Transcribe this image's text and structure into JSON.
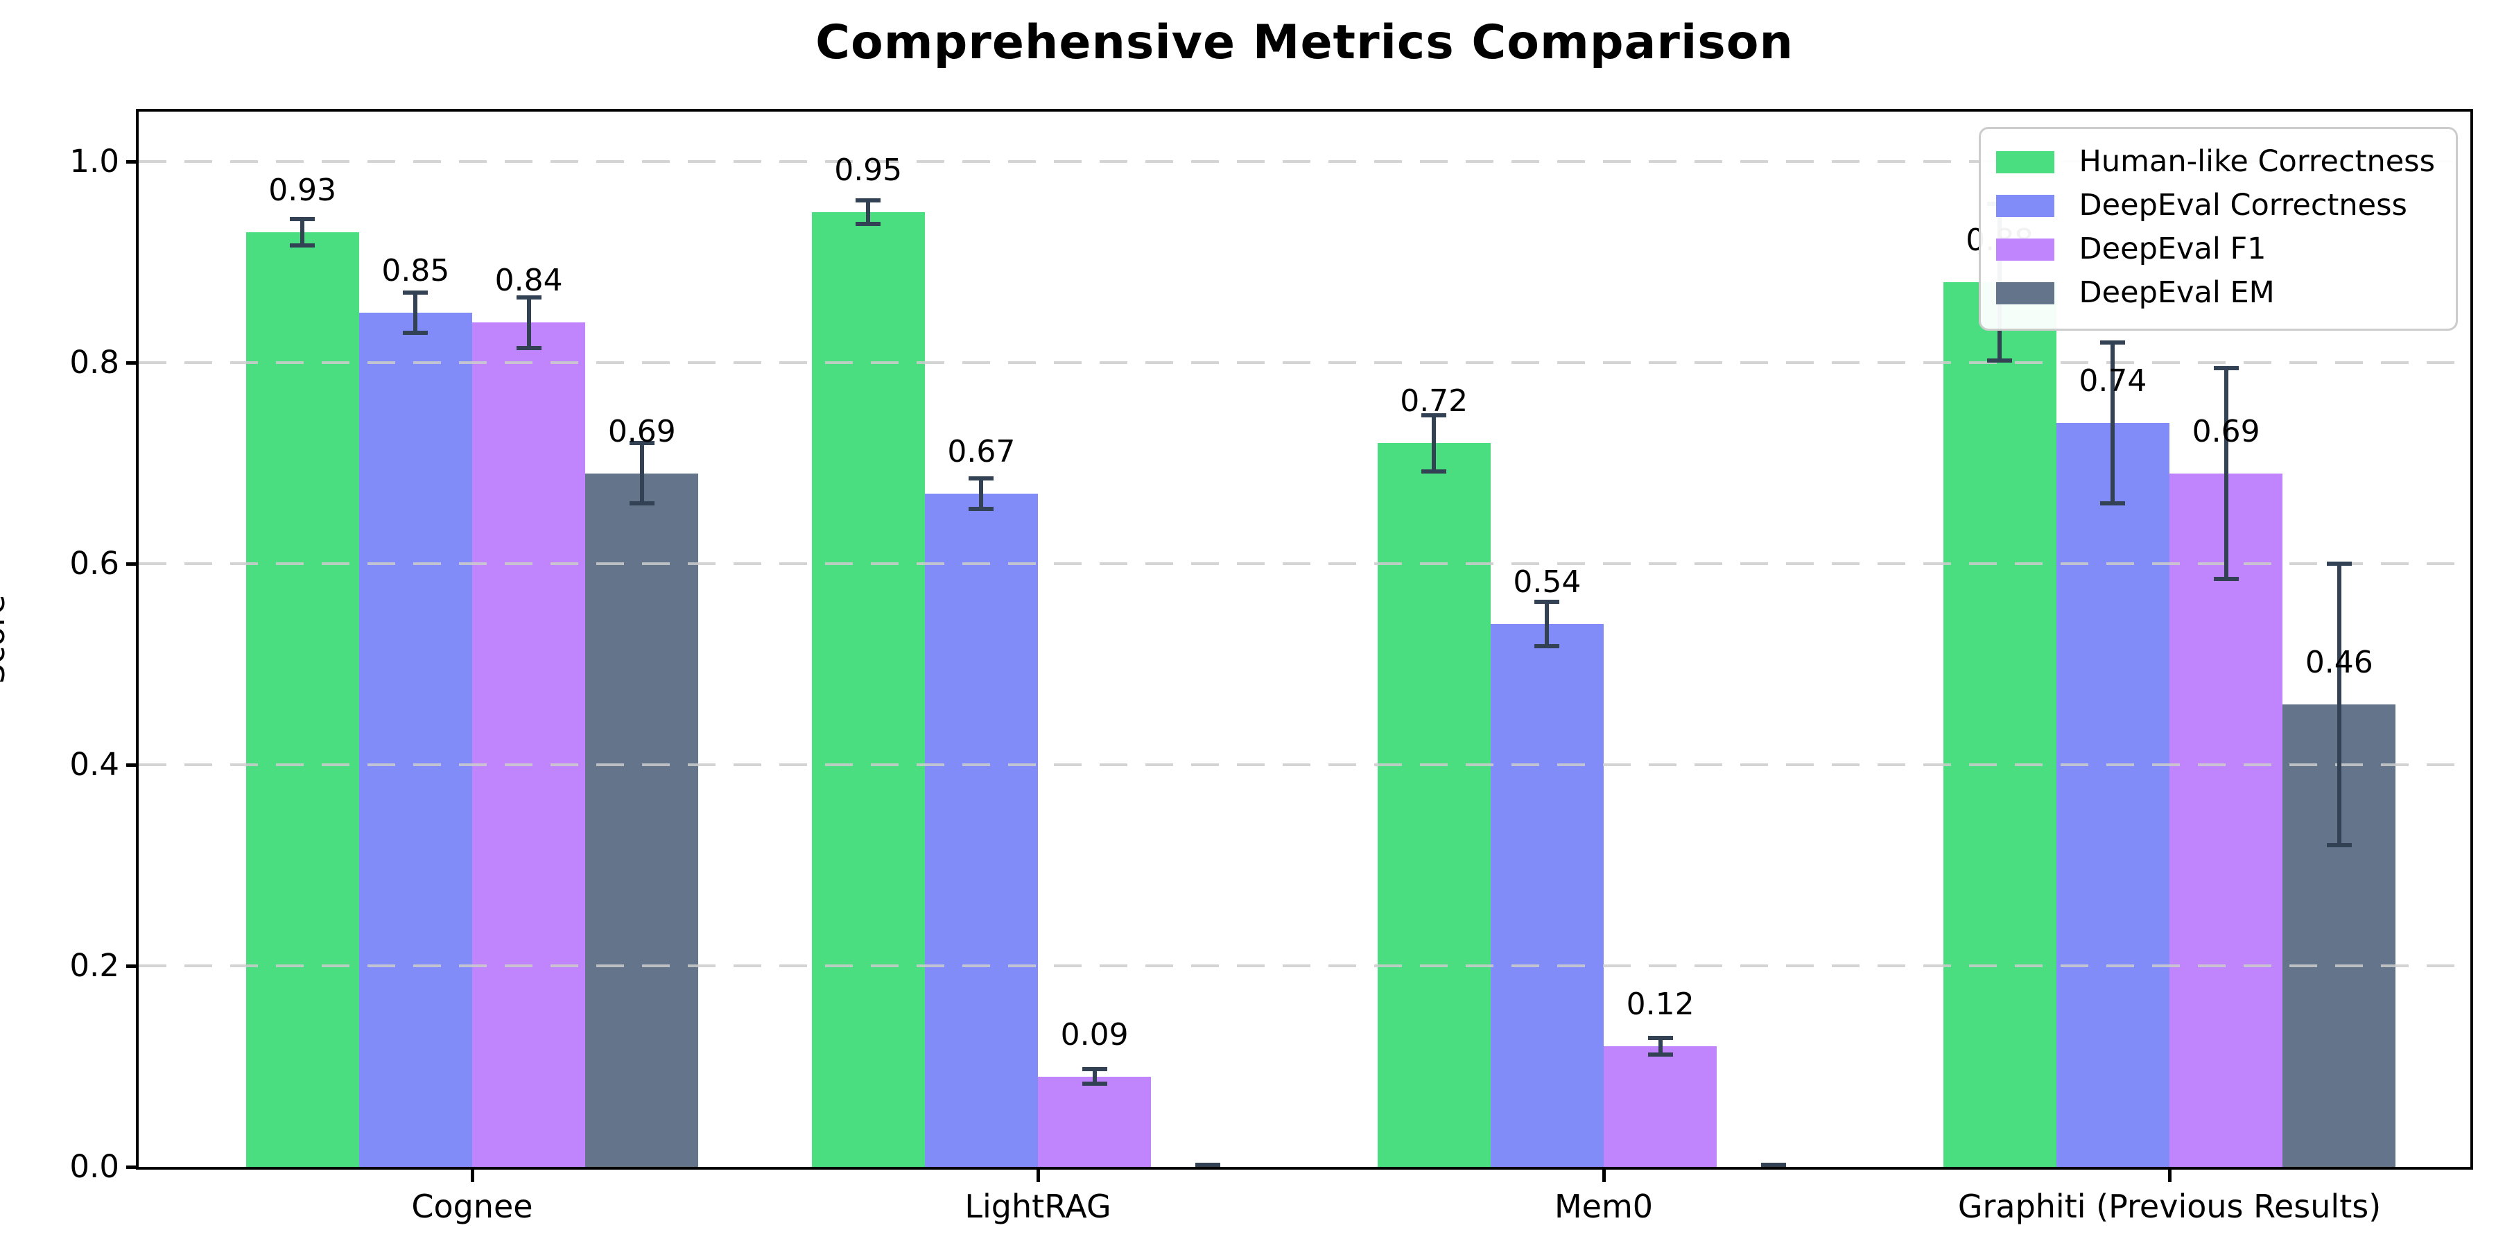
{
  "chart_data": {
    "type": "bar",
    "title": "Comprehensive Metrics Comparison",
    "xlabel": "",
    "ylabel": "Score",
    "categories": [
      "Cognee",
      "LightRAG",
      "Mem0",
      "Graphiti (Previous Results)"
    ],
    "series": [
      {
        "name": "Human-like Correctness",
        "color": "#4ade80",
        "values": [
          0.93,
          0.95,
          0.72,
          0.88
        ],
        "errors": [
          0.013,
          0.012,
          0.028,
          0.078
        ],
        "value_labels": [
          "0.93",
          "0.95",
          "0.72",
          "0.88"
        ]
      },
      {
        "name": "DeepEval Correctness",
        "color": "#818cf8",
        "values": [
          0.85,
          0.67,
          0.54,
          0.74
        ],
        "errors": [
          0.02,
          0.015,
          0.022,
          0.08
        ],
        "value_labels": [
          "0.85",
          "0.67",
          "0.54",
          "0.74"
        ]
      },
      {
        "name": "DeepEval F1",
        "color": "#c084fc",
        "values": [
          0.84,
          0.09,
          0.12,
          0.69
        ],
        "errors": [
          0.025,
          0.007,
          0.008,
          0.105
        ],
        "value_labels": [
          "0.84",
          "0.09",
          "0.12",
          "0.69"
        ]
      },
      {
        "name": "DeepEval EM",
        "color": "#64748b",
        "values": [
          0.69,
          0.0,
          0.0,
          0.46
        ],
        "errors": [
          0.03,
          0.002,
          0.002,
          0.14
        ],
        "value_labels": [
          "0.69",
          "",
          "",
          "0.46"
        ]
      }
    ],
    "y_ticks": [
      "0.0",
      "0.2",
      "0.4",
      "0.6",
      "0.8",
      "1.0"
    ],
    "ylim": [
      0,
      1.05
    ],
    "grid": "horizontal-dashed",
    "legend_position": "upper right",
    "error_bar_color": "#334155"
  }
}
